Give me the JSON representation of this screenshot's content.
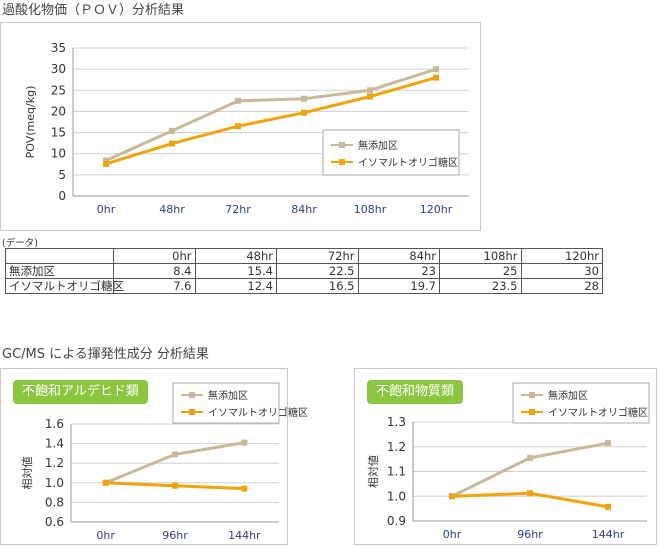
{
  "main_title": "過酸化物価（ＰＯＶ）分析結果",
  "table_caption": "(データ)",
  "gc_title": "GC/MS による揮発性成分 分析結果",
  "colors": {
    "series1": "#c8b99a",
    "series2": "#f0a30a",
    "badge": "#8cc63f",
    "grid": "#d0d0d0"
  },
  "chart_data": [
    {
      "type": "line",
      "ylabel": "POV(meq/kg)",
      "categories": [
        "0hr",
        "48hr",
        "72hr",
        "84hr",
        "108hr",
        "120hr"
      ],
      "ylim": [
        0,
        35
      ],
      "yticks": [
        "0",
        "5",
        "10",
        "15",
        "20",
        "25",
        "30",
        "35"
      ],
      "grid": true,
      "legend_position": "bottom-right",
      "series": [
        {
          "name": "無添加区",
          "values": [
            8.4,
            15.4,
            22.5,
            23,
            25,
            30
          ]
        },
        {
          "name": "イソマルトオリゴ糖区",
          "values": [
            7.6,
            12.4,
            16.5,
            19.7,
            23.5,
            28
          ]
        }
      ]
    },
    {
      "type": "line",
      "title": "不飽和アルデヒド類",
      "ylabel": "相対値",
      "categories": [
        "0hr",
        "96hr",
        "144hr"
      ],
      "ylim": [
        0.6,
        1.6
      ],
      "yticks": [
        "0.6",
        "0.8",
        "1.0",
        "1.2",
        "1.4",
        "1.6"
      ],
      "grid": true,
      "legend_position": "top-right",
      "series": [
        {
          "name": "無添加区",
          "values": [
            1.0,
            1.29,
            1.41
          ]
        },
        {
          "name": "イソマルトオリゴ糖区",
          "values": [
            1.0,
            0.97,
            0.94
          ]
        }
      ]
    },
    {
      "type": "line",
      "title": "不飽和物質類",
      "ylabel": "相対値",
      "categories": [
        "0hr",
        "96hr",
        "144hr"
      ],
      "ylim": [
        0.9,
        1.3
      ],
      "yticks": [
        "0.9",
        "1.0",
        "1.1",
        "1.2",
        "1.3"
      ],
      "grid": true,
      "legend_position": "top-right",
      "series": [
        {
          "name": "無添加区",
          "values": [
            1.0,
            1.155,
            1.215
          ]
        },
        {
          "name": "イソマルトオリゴ糖区",
          "values": [
            1.0,
            1.012,
            0.957
          ]
        }
      ]
    }
  ],
  "data_table": {
    "header": [
      "",
      "0hr",
      "48hr",
      "72hr",
      "84hr",
      "108hr",
      "120hr"
    ],
    "rows": [
      [
        "無添加区",
        "8.4",
        "15.4",
        "22.5",
        "23",
        "25",
        "30"
      ],
      [
        "イソマルトオリゴ糖区",
        "7.6",
        "12.4",
        "16.5",
        "19.7",
        "23.5",
        "28"
      ]
    ]
  }
}
